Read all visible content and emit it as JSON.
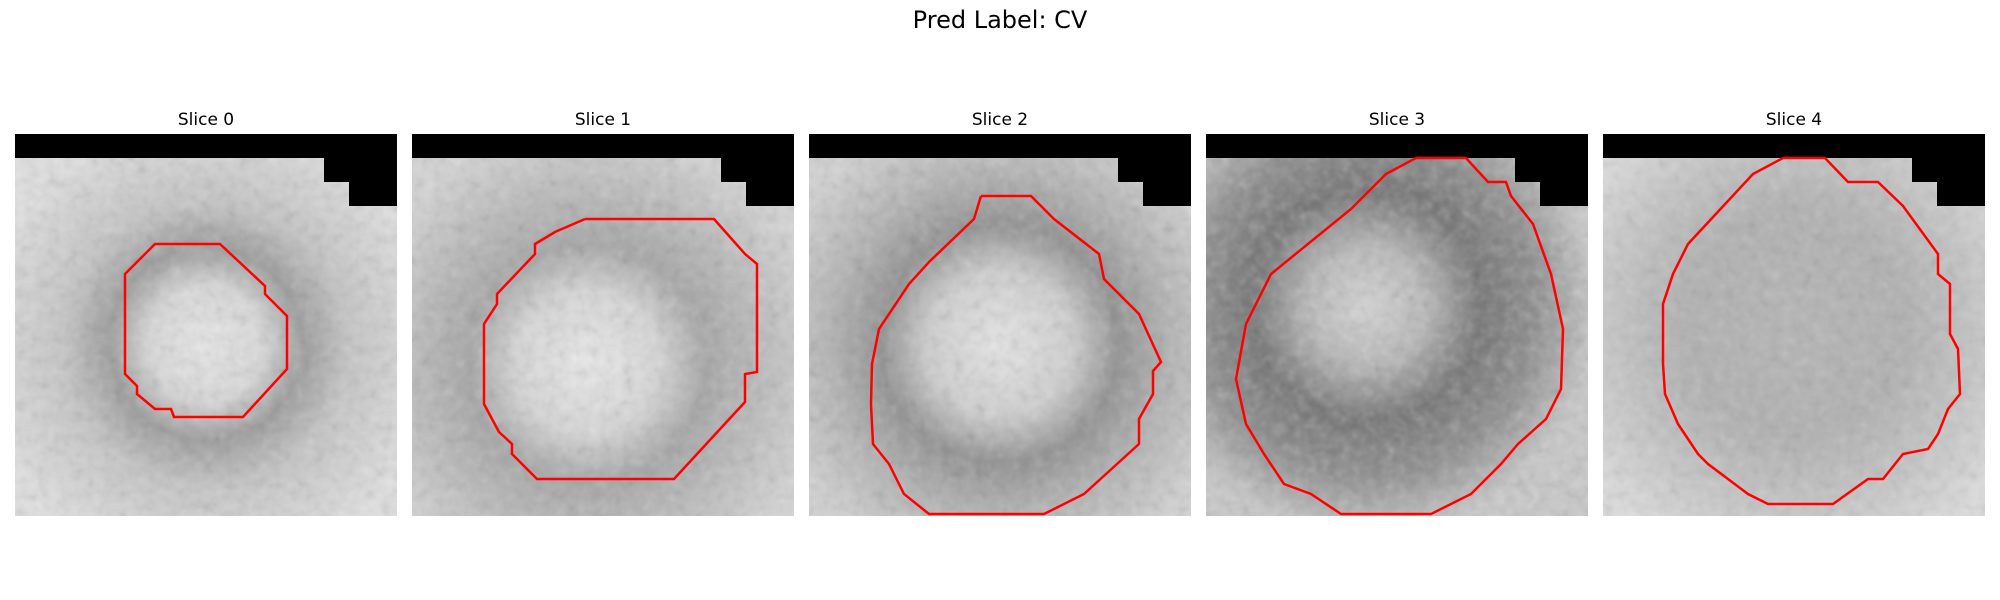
{
  "figure": {
    "title": "Pred Label: CV"
  },
  "colors": {
    "contour": "#ff0000",
    "mask": "#000000"
  },
  "panels": [
    {
      "title": "Slice 0"
    },
    {
      "title": "Slice 1"
    },
    {
      "title": "Slice 2"
    },
    {
      "title": "Slice 3"
    },
    {
      "title": "Slice 4"
    }
  ]
}
